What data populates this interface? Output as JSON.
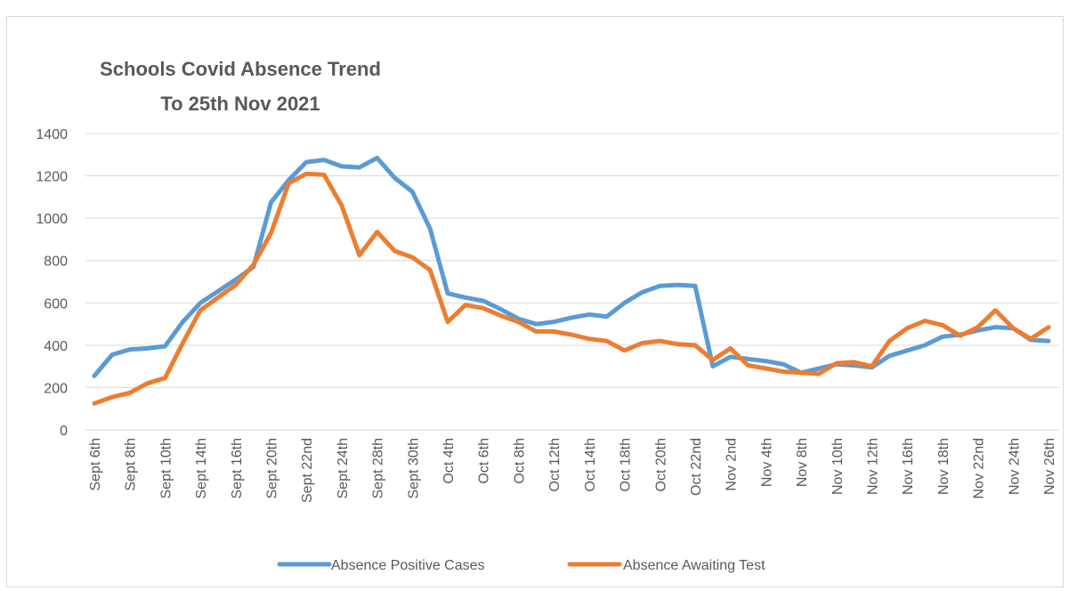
{
  "chart_data": {
    "type": "line",
    "title": [
      "Schools Covid  Absence Trend",
      "To 25th Nov 2021"
    ],
    "categories": [
      "Sept 6th",
      null,
      "Sept 8th",
      null,
      "Sept 10th",
      null,
      "Sept 14th",
      null,
      "Sept 16th",
      null,
      "Sept 20th",
      null,
      "Sept 22nd",
      null,
      "Sept 24th",
      null,
      "Sept 28th",
      null,
      "Sept 30th",
      null,
      "Oct 4th",
      null,
      "Oct 6th",
      null,
      "Oct 8th",
      null,
      "Oct 12th",
      null,
      "Oct 14th",
      null,
      "Oct 18th",
      null,
      "Oct 20th",
      null,
      "Oct 22nd",
      null,
      "Nov 2nd",
      null,
      "Nov 4th",
      null,
      "Nov 8th",
      null,
      "Nov 10th",
      null,
      "Nov 12th",
      null,
      "Nov 16th",
      null,
      "Nov 18th",
      null,
      "Nov 22nd",
      null,
      "Nov 24th",
      null,
      "Nov 26th"
    ],
    "series": [
      {
        "name": "Absence Positive Cases",
        "color": "#5b9bd5",
        "values": [
          255,
          355,
          380,
          385,
          395,
          510,
          600,
          655,
          710,
          770,
          1075,
          1180,
          1265,
          1275,
          1245,
          1240,
          1285,
          1190,
          1125,
          950,
          645,
          625,
          610,
          570,
          525,
          500,
          510,
          530,
          545,
          535,
          600,
          650,
          680,
          685,
          680,
          300,
          345,
          335,
          325,
          310,
          270,
          290,
          310,
          305,
          295,
          350,
          375,
          400,
          440,
          450,
          470,
          485,
          480,
          425,
          420
        ]
      },
      {
        "name": "Absence Awaiting Test",
        "color": "#ed7d31",
        "values": [
          125,
          155,
          175,
          220,
          245,
          410,
          565,
          625,
          685,
          780,
          930,
          1165,
          1210,
          1205,
          1060,
          825,
          935,
          845,
          815,
          755,
          510,
          590,
          575,
          540,
          510,
          465,
          465,
          450,
          430,
          420,
          375,
          410,
          420,
          405,
          400,
          330,
          385,
          305,
          290,
          275,
          270,
          265,
          315,
          320,
          300,
          420,
          480,
          515,
          495,
          445,
          485,
          565,
          480,
          430,
          485
        ]
      }
    ],
    "ylim": [
      0,
      1400
    ],
    "yticks": [
      0,
      200,
      400,
      600,
      800,
      1000,
      1200,
      1400
    ],
    "grid": true,
    "legend": "bottom"
  }
}
